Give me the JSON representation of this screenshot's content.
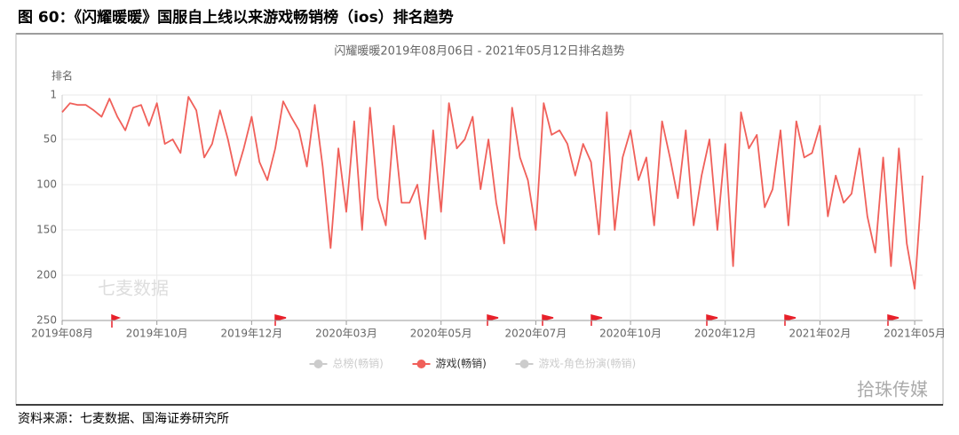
{
  "figure_title": "图 60：《闪耀暖暖》国服自上线以来游戏畅销榜（ios）排名趋势",
  "source": "资料来源：七麦数据、国海证券研究所",
  "brand": "拾珠传媒",
  "chart_data": {
    "type": "line",
    "title": "闪耀暖暖2019年08月06日 - 2021年05月12日排名趋势",
    "y_label": "排名",
    "watermark": "七麦数据",
    "inverse_y": true,
    "ylim": [
      1,
      250
    ],
    "yticks": [
      1,
      50,
      100,
      150,
      200,
      250
    ],
    "grid": true,
    "categories": [
      "2019年08月",
      null,
      null,
      null,
      null,
      null,
      null,
      null,
      null,
      null,
      null,
      null,
      "2019年10月",
      null,
      null,
      null,
      null,
      null,
      null,
      null,
      null,
      null,
      null,
      null,
      "2019年12月",
      null,
      null,
      null,
      null,
      null,
      null,
      null,
      null,
      null,
      null,
      null,
      "2020年03月",
      null,
      null,
      null,
      null,
      null,
      null,
      null,
      null,
      null,
      null,
      null,
      "2020年05月",
      null,
      null,
      null,
      null,
      null,
      null,
      null,
      null,
      null,
      null,
      null,
      "2020年07月",
      null,
      null,
      null,
      null,
      null,
      null,
      null,
      null,
      null,
      null,
      null,
      "2020年10月",
      null,
      null,
      null,
      null,
      null,
      null,
      null,
      null,
      null,
      null,
      null,
      "2020年12月",
      null,
      null,
      null,
      null,
      null,
      null,
      null,
      null,
      null,
      null,
      null,
      "2021年02月",
      null,
      null,
      null,
      null,
      null,
      null,
      null,
      null,
      null,
      null,
      null,
      "2021年05月",
      null
    ],
    "series": [
      {
        "name": "总榜(畅销)",
        "color": "#cccccc",
        "visible": false,
        "values": null
      },
      {
        "name": "游戏(畅销)",
        "color": "#f0605a",
        "visible": true,
        "values": [
          20,
          10,
          12,
          12,
          18,
          25,
          5,
          25,
          40,
          15,
          12,
          35,
          10,
          55,
          50,
          65,
          3,
          18,
          70,
          55,
          18,
          50,
          90,
          60,
          25,
          75,
          95,
          60,
          8,
          25,
          40,
          80,
          12,
          80,
          170,
          60,
          130,
          30,
          150,
          15,
          115,
          145,
          35,
          120,
          120,
          100,
          160,
          40,
          130,
          10,
          60,
          50,
          25,
          105,
          50,
          120,
          165,
          15,
          70,
          95,
          150,
          10,
          45,
          40,
          55,
          90,
          55,
          75,
          155,
          20,
          150,
          70,
          40,
          95,
          70,
          145,
          30,
          70,
          115,
          40,
          145,
          90,
          50,
          150,
          55,
          190,
          20,
          60,
          45,
          125,
          105,
          40,
          145,
          30,
          70,
          65,
          35,
          135,
          90,
          120,
          110,
          60,
          135,
          175,
          70,
          190,
          60,
          165,
          215,
          90
        ]
      },
      {
        "name": "游戏-角色扮演(畅销)",
        "color": "#cccccc",
        "visible": false,
        "values": null
      }
    ]
  }
}
